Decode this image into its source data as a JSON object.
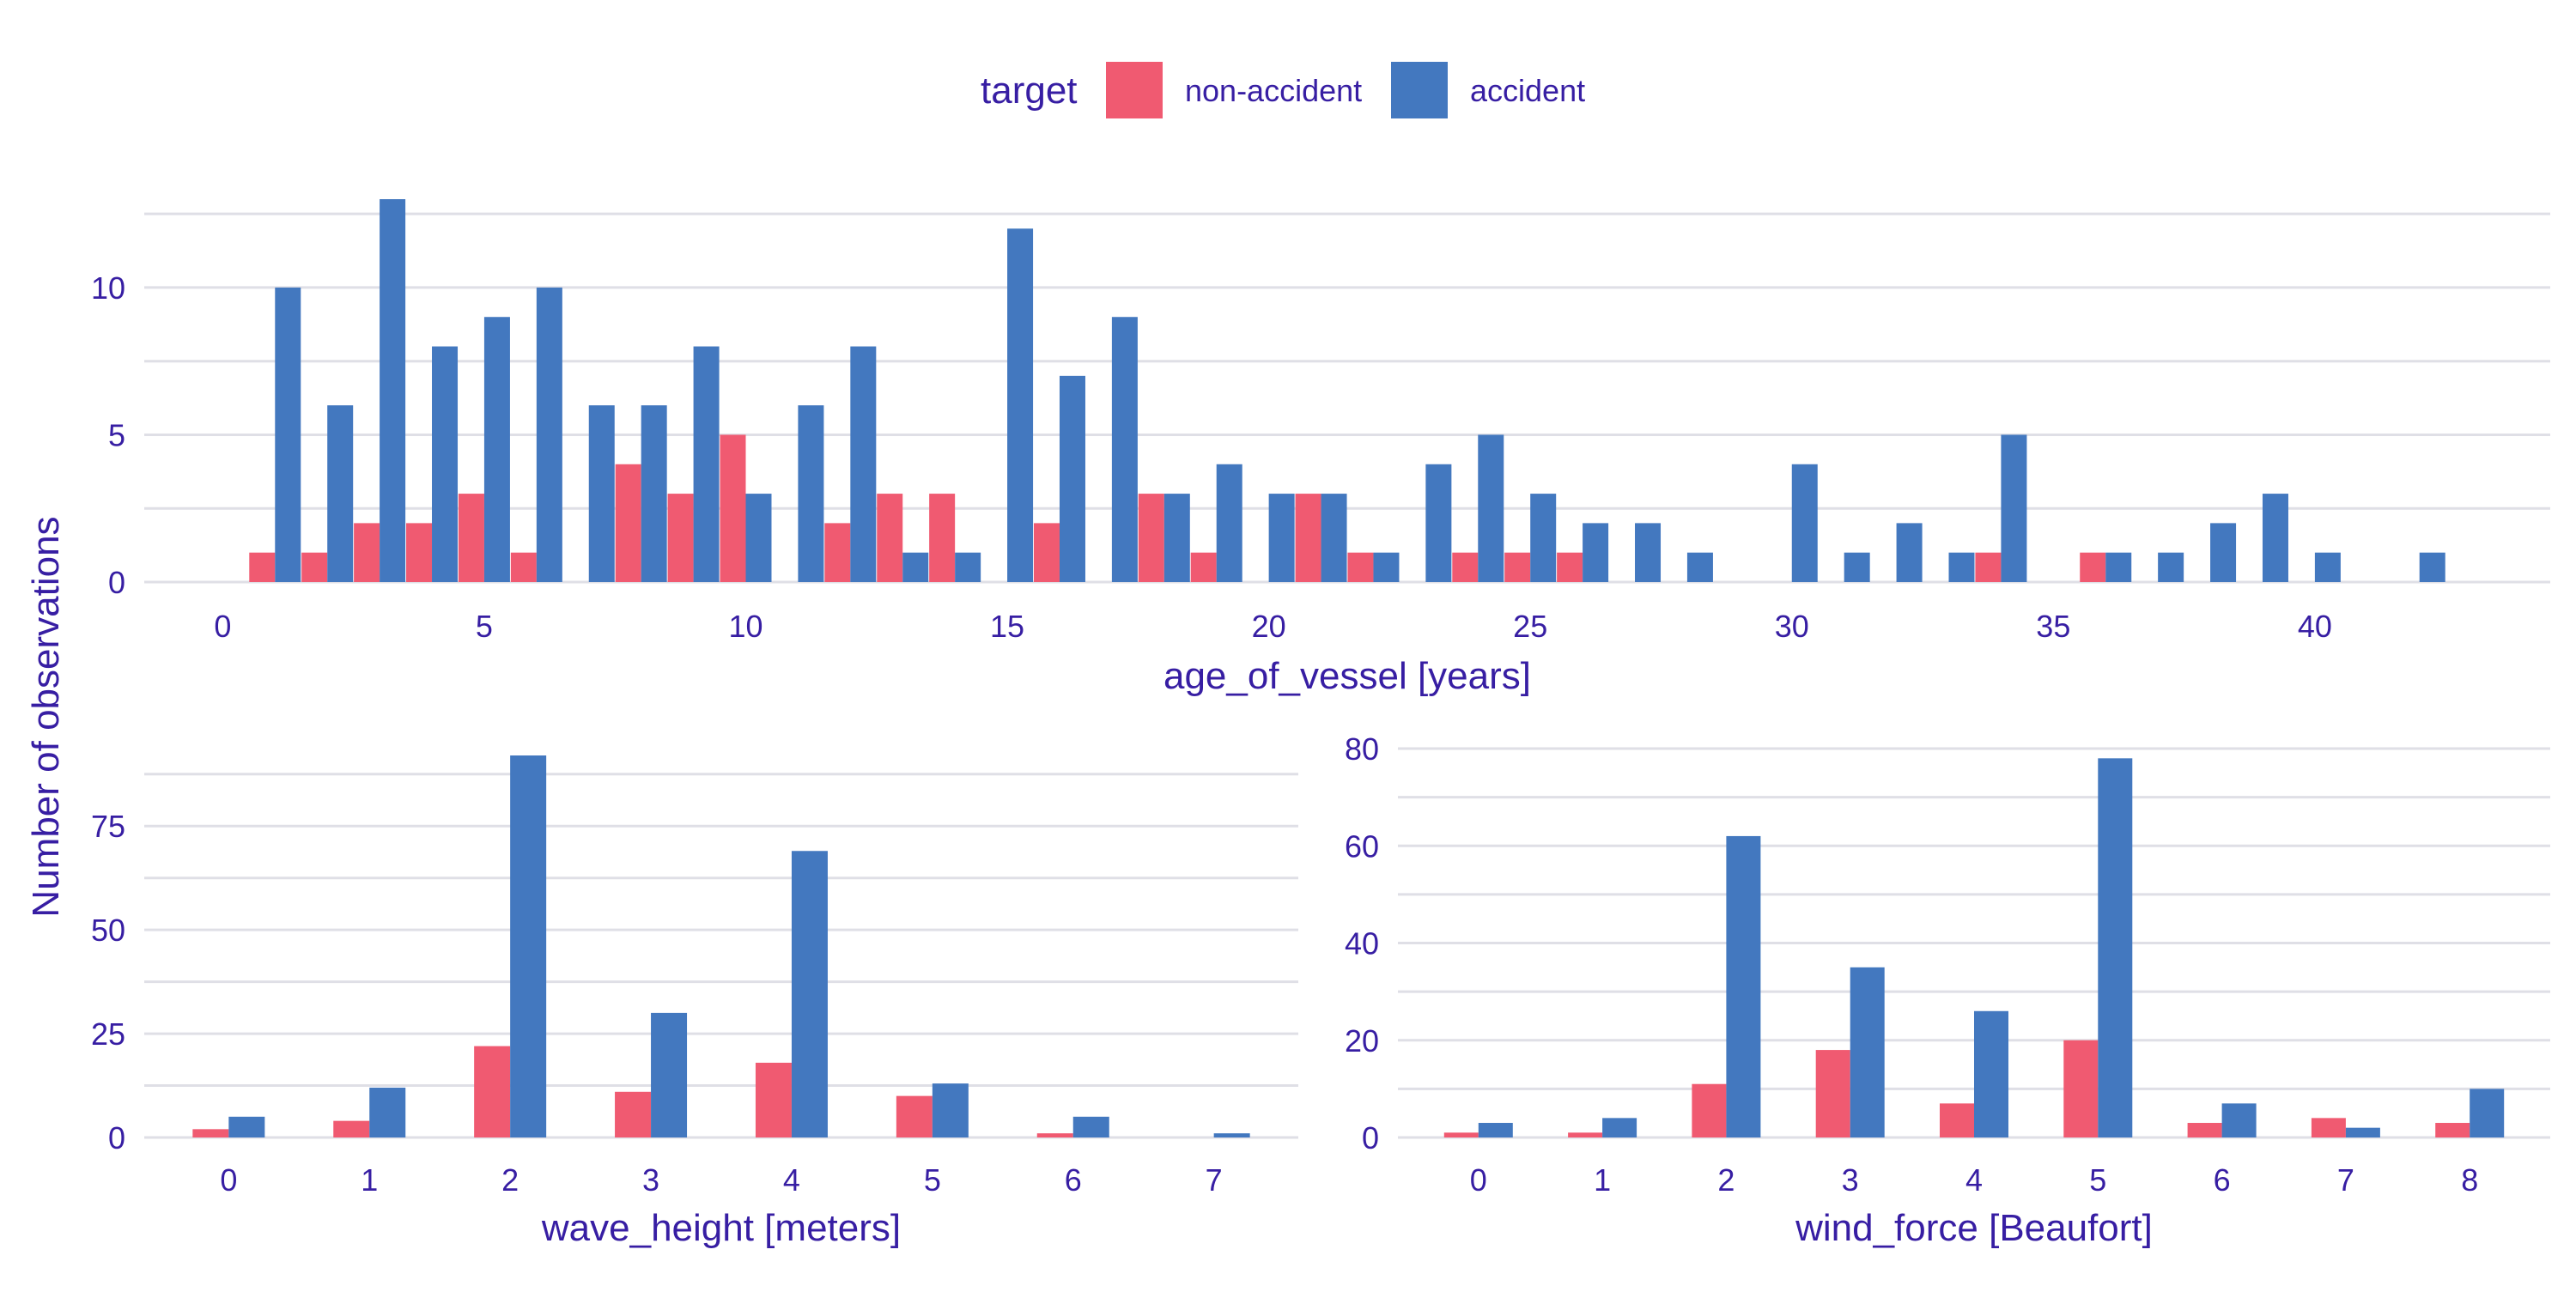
{
  "legend": {
    "title": "target",
    "items": [
      {
        "label": "non-accident",
        "color": "#f05a71"
      },
      {
        "label": "accident",
        "color": "#4378bf"
      }
    ]
  },
  "y_axis_label": "Number of observations",
  "colors": {
    "text": "#371ea3",
    "grid": "#dfdfe6"
  },
  "chart_data": [
    {
      "type": "bar",
      "xlabel": "age_of_vessel [years]",
      "xlim": [
        -1.5,
        44.5
      ],
      "ylim": [
        0,
        13
      ],
      "x_ticks": [
        0,
        5,
        10,
        15,
        20,
        25,
        30,
        35,
        40
      ],
      "y_ticks": [
        0,
        5,
        10
      ],
      "series": [
        {
          "name": "non-accident",
          "color": "#f05a71",
          "x": [
            1,
            2,
            3,
            4,
            5,
            6,
            8,
            9,
            10,
            12,
            13,
            14,
            16,
            18,
            19,
            21,
            22,
            24,
            25,
            26,
            34,
            36
          ],
          "values": [
            1,
            1,
            2,
            2,
            3,
            1,
            4,
            3,
            5,
            2,
            3,
            3,
            2,
            3,
            1,
            3,
            1,
            1,
            1,
            1,
            1,
            1
          ]
        },
        {
          "name": "accident",
          "color": "#4378bf",
          "x": [
            1,
            2,
            3,
            4,
            5,
            6,
            7,
            8,
            9,
            10,
            11,
            12,
            13,
            14,
            15,
            16,
            17,
            18,
            19,
            20,
            21,
            22,
            23,
            24,
            25,
            26,
            27,
            28,
            30,
            31,
            32,
            33,
            34,
            36,
            37,
            38,
            39,
            40,
            42
          ],
          "values": [
            10,
            6,
            13,
            8,
            9,
            10,
            6,
            6,
            8,
            3,
            6,
            8,
            1,
            1,
            12,
            7,
            9,
            3,
            4,
            3,
            3,
            1,
            4,
            5,
            3,
            2,
            2,
            1,
            4,
            1,
            2,
            1,
            5,
            1,
            1,
            2,
            3,
            1,
            1
          ]
        }
      ]
    },
    {
      "type": "bar",
      "xlabel": "wave_height [meters]",
      "xlim": [
        -0.6,
        7.6
      ],
      "ylim": [
        0,
        92
      ],
      "x_ticks": [
        0,
        1,
        2,
        3,
        4,
        5,
        6,
        7
      ],
      "y_ticks": [
        0,
        25,
        50,
        75
      ],
      "series": [
        {
          "name": "non-accident",
          "color": "#f05a71",
          "x": [
            0,
            1,
            2,
            3,
            4,
            5,
            6,
            7
          ],
          "values": [
            2,
            4,
            22,
            11,
            18,
            10,
            1,
            0
          ]
        },
        {
          "name": "accident",
          "color": "#4378bf",
          "x": [
            0,
            1,
            2,
            3,
            4,
            5,
            6,
            7
          ],
          "values": [
            5,
            12,
            92,
            30,
            69,
            13,
            5,
            1
          ]
        }
      ]
    },
    {
      "type": "bar",
      "xlabel": "wind_force [Beaufort]",
      "xlim": [
        -0.65,
        8.65
      ],
      "ylim": [
        0,
        80
      ],
      "x_ticks": [
        0,
        1,
        2,
        3,
        4,
        5,
        6,
        7,
        8
      ],
      "y_ticks": [
        0,
        20,
        40,
        60,
        80
      ],
      "series": [
        {
          "name": "non-accident",
          "color": "#f05a71",
          "x": [
            0,
            1,
            2,
            3,
            4,
            5,
            6,
            7,
            8
          ],
          "values": [
            1,
            1,
            11,
            18,
            7,
            20,
            3,
            4,
            3
          ]
        },
        {
          "name": "accident",
          "color": "#4378bf",
          "x": [
            0,
            1,
            2,
            3,
            4,
            5,
            6,
            7,
            8
          ],
          "values": [
            3,
            4,
            62,
            35,
            26,
            78,
            7,
            2,
            10
          ]
        }
      ]
    }
  ]
}
